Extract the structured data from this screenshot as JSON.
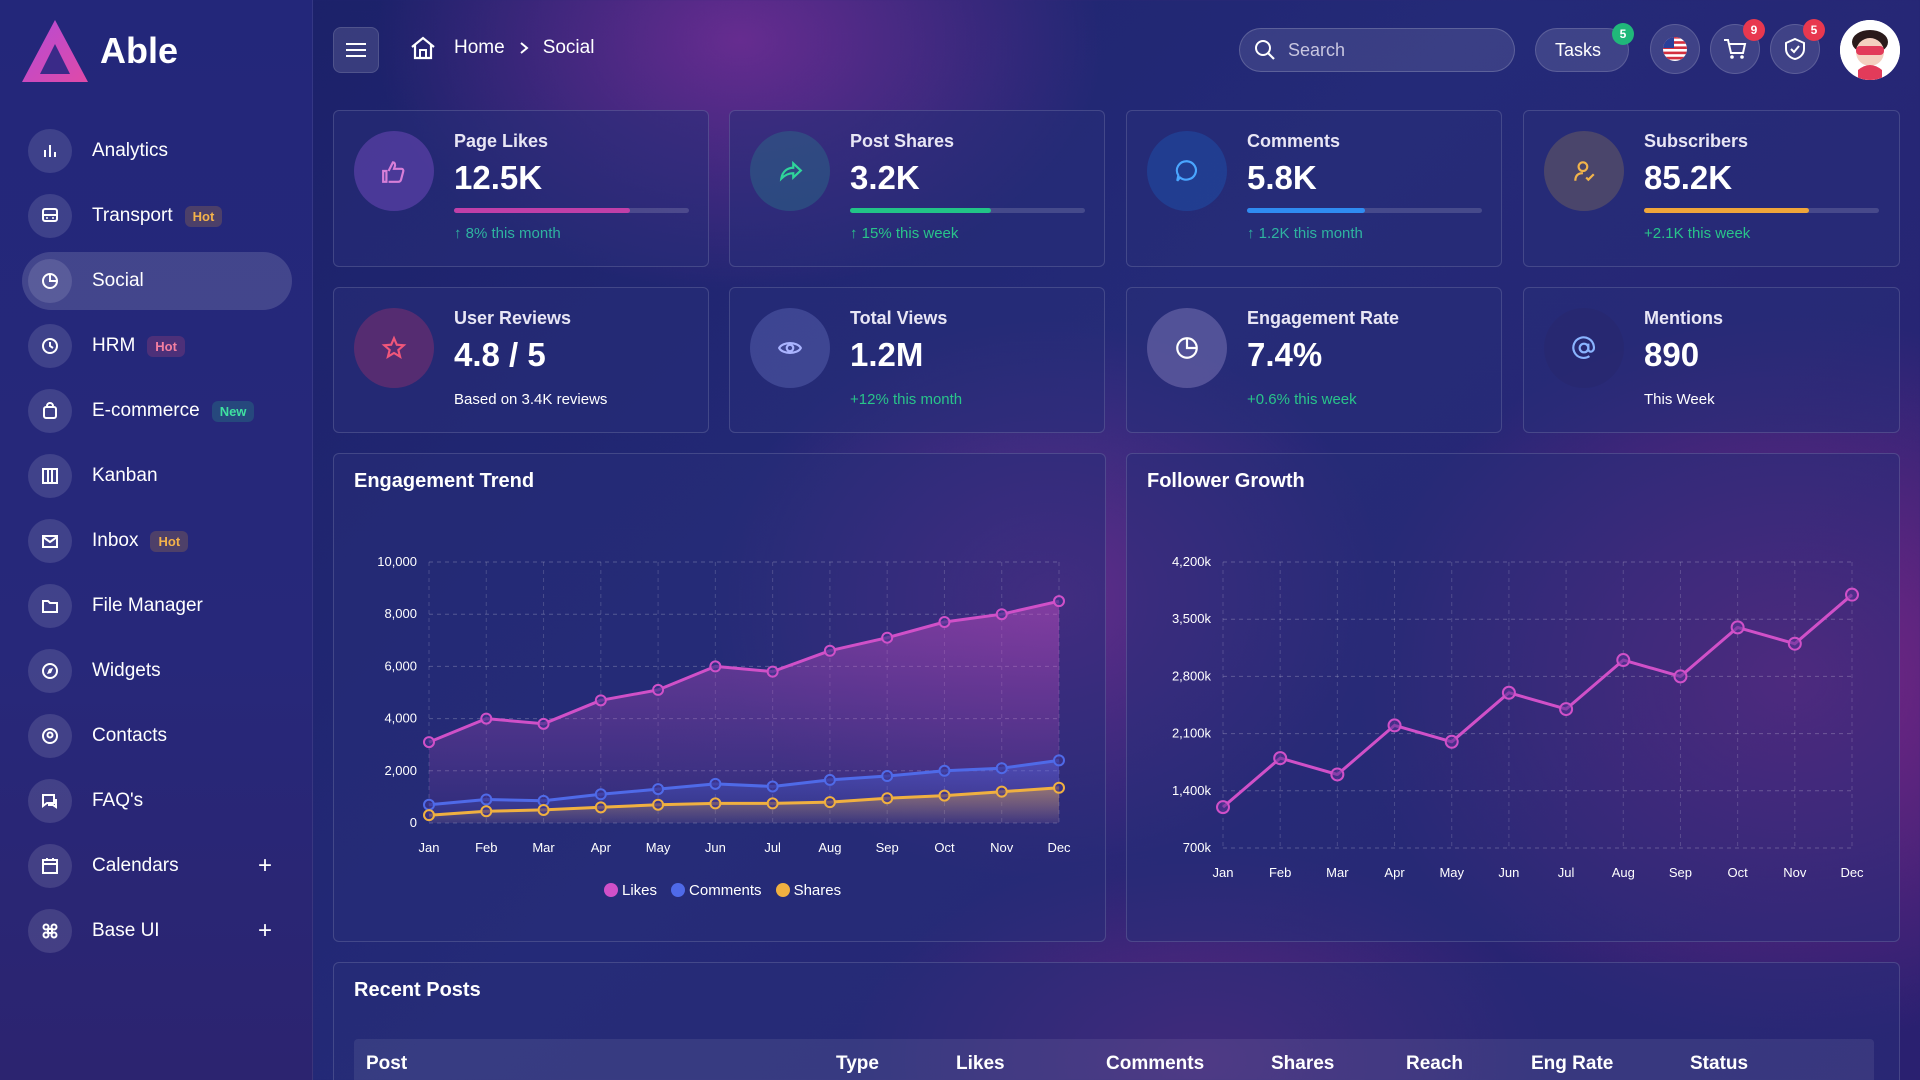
{
  "app": {
    "name": "Able"
  },
  "sidebar": {
    "items": [
      {
        "label": "Analytics",
        "icon": "bar-chart-icon"
      },
      {
        "label": "Transport",
        "icon": "bus-icon",
        "badge": "Hot"
      },
      {
        "label": "Social",
        "icon": "pie-chart-icon",
        "active": true
      },
      {
        "label": "HRM",
        "icon": "history-icon",
        "badge": "Hot"
      },
      {
        "label": "E-commerce",
        "icon": "shopping-bag-icon",
        "badge": "New"
      },
      {
        "label": "Kanban",
        "icon": "columns-icon"
      },
      {
        "label": "Inbox",
        "icon": "mail-icon",
        "badge": "Hot"
      },
      {
        "label": "File Manager",
        "icon": "folder-icon"
      },
      {
        "label": "Widgets",
        "icon": "compass-icon"
      },
      {
        "label": "Contacts",
        "icon": "contact-icon"
      },
      {
        "label": "FAQ's",
        "icon": "chat-icon"
      },
      {
        "label": "Calendars",
        "icon": "calendar-icon",
        "expand": "+"
      },
      {
        "label": "Base UI",
        "icon": "command-icon",
        "expand": "+"
      }
    ]
  },
  "header": {
    "breadcrumb": {
      "home": "Home",
      "current": "Social"
    },
    "search_placeholder": "Search",
    "tasks_label": "Tasks",
    "tasks_count": "5",
    "cart_count": "9",
    "notifications_count": "5"
  },
  "stats": [
    {
      "label": "Page Likes",
      "value": "12.5K",
      "sub": "↑ 8% this month",
      "progress": 0.75,
      "color": "#c03fa8"
    },
    {
      "label": "Post Shares",
      "value": "3.2K",
      "sub": "↑ 15% this week",
      "progress": 0.6,
      "color": "#22c487"
    },
    {
      "label": "Comments",
      "value": "5.8K",
      "sub": "↑ 1.2K this month",
      "progress": 0.5,
      "color": "#2f8cf2"
    },
    {
      "label": "Subscribers",
      "value": "85.2K",
      "sub": "+2.1K this week",
      "progress": 0.7,
      "color": "#f0a63a"
    },
    {
      "label": "User Reviews",
      "value": "4.8 / 5",
      "sub": "Based on 3.4K reviews"
    },
    {
      "label": "Total Views",
      "value": "1.2M",
      "sub": "+12% this month"
    },
    {
      "label": "Engagement Rate",
      "value": "7.4%",
      "sub": "+0.6% this week"
    },
    {
      "label": "Mentions",
      "value": "890",
      "sub": "This Week"
    }
  ],
  "engagement": {
    "title": "Engagement Trend"
  },
  "followers": {
    "title": "Follower Growth"
  },
  "chart_data": [
    {
      "type": "area",
      "title": "Engagement Trend",
      "categories": [
        "Jan",
        "Feb",
        "Mar",
        "Apr",
        "May",
        "Jun",
        "Jul",
        "Aug",
        "Sep",
        "Oct",
        "Nov",
        "Dec"
      ],
      "ylim": [
        0,
        10000
      ],
      "yticks": [
        "0",
        "2,000",
        "4,000",
        "6,000",
        "8,000",
        "10,000"
      ],
      "series": [
        {
          "name": "Likes",
          "color": "#d050c8",
          "values": [
            3100,
            4000,
            3800,
            4700,
            5100,
            6000,
            5800,
            6600,
            7100,
            7700,
            8000,
            8500
          ]
        },
        {
          "name": "Comments",
          "color": "#4f6ae8",
          "values": [
            700,
            900,
            850,
            1100,
            1300,
            1500,
            1400,
            1650,
            1800,
            2000,
            2100,
            2400
          ]
        },
        {
          "name": "Shares",
          "color": "#f0b040",
          "values": [
            300,
            450,
            500,
            600,
            700,
            750,
            750,
            800,
            950,
            1050,
            1200,
            1350
          ]
        }
      ],
      "legend": "bottom",
      "grid": true
    },
    {
      "type": "line",
      "title": "Follower Growth",
      "categories": [
        "Jan",
        "Feb",
        "Mar",
        "Apr",
        "May",
        "Jun",
        "Jul",
        "Aug",
        "Sep",
        "Oct",
        "Nov",
        "Dec"
      ],
      "ylim": [
        700,
        4200
      ],
      "yticks": [
        "700k",
        "1,400k",
        "2,100k",
        "2,800k",
        "3,500k",
        "4,200k"
      ],
      "series": [
        {
          "color": "#d050c8",
          "values": [
            1200,
            1800,
            1600,
            2200,
            2000,
            2600,
            2400,
            3000,
            2800,
            3400,
            3200,
            3800
          ]
        }
      ],
      "grid": true
    }
  ],
  "recent_posts": {
    "title": "Recent Posts",
    "columns": [
      "Post",
      "Type",
      "Likes",
      "Comments",
      "Shares",
      "Reach",
      "Eng Rate",
      "Status"
    ]
  }
}
